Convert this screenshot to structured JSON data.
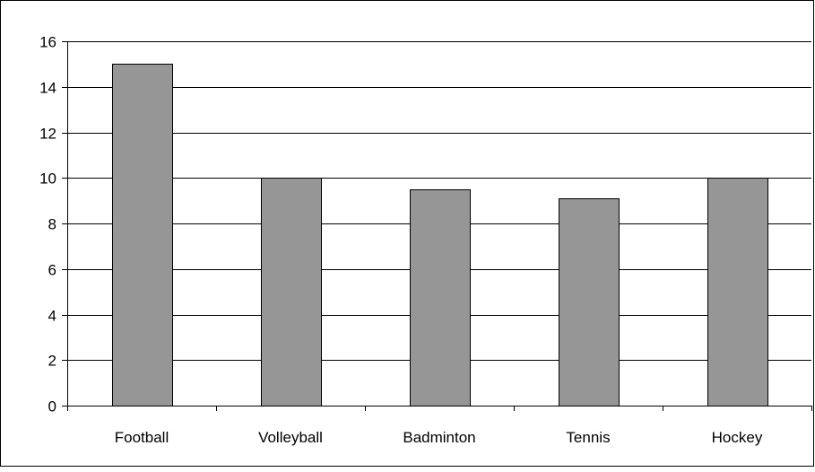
{
  "chart_data": {
    "type": "bar",
    "categories": [
      "Football",
      "Volleyball",
      "Badminton",
      "Tennis",
      "Hockey"
    ],
    "values": [
      15,
      10,
      9.5,
      9.1,
      10
    ],
    "title": "",
    "xlabel": "",
    "ylabel": "",
    "ylim": [
      0,
      16
    ],
    "yticks": [
      0,
      2,
      4,
      6,
      8,
      10,
      12,
      14,
      16
    ],
    "ytick_labels": [
      "0",
      "2",
      "4",
      "6",
      "8",
      "10",
      "12",
      "14",
      "16"
    ],
    "grid": true,
    "legend": "none",
    "colors": {
      "bar": "#969696",
      "bar_edge": "#000000",
      "grid": "#000000",
      "background": "#ffffff"
    }
  }
}
